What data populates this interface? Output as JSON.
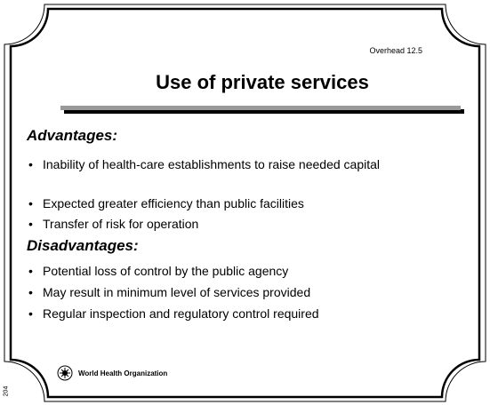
{
  "overhead": "Overhead 12.5",
  "title": "Use of private services",
  "sections": [
    {
      "heading": "Advantages:",
      "items": [
        "Inability of health-care establishments to raise needed capital",
        "Expected greater efficiency than public facilities",
        "Transfer of risk for operation"
      ]
    },
    {
      "heading": "Disadvantages:",
      "items": [
        "Potential loss of control by the public agency",
        "May result in minimum level of services provided",
        "Regular inspection and regulatory control required"
      ]
    }
  ],
  "footer": "World Health Organization",
  "page_number": "204"
}
